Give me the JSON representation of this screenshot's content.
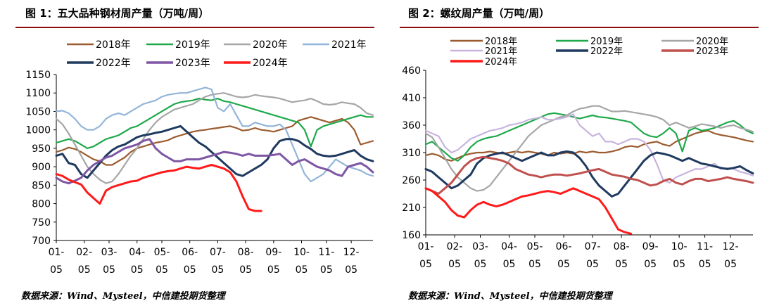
{
  "charts": [
    {
      "title": "图 1：五大品种钢材周产量（万吨/周）",
      "source": "数据来源：Wind、Mysteel，中信建投期货整理"
    },
    {
      "title": "图 2：螺纹周产量（万吨/周）",
      "source": "数据来源：Wind、Mysteel，中信建投期货整理"
    }
  ],
  "chart_data": [
    {
      "type": "line",
      "title": "图 1：五大品种钢材周产量（万吨/周）",
      "xlabel": "",
      "ylabel": "",
      "xlim": [
        1,
        52
      ],
      "ylim": [
        700,
        1150
      ],
      "yticks": [
        "1150",
        "1100",
        "1050",
        "1000",
        "950",
        "900",
        "850",
        "800",
        "750",
        "700"
      ],
      "xticks": [
        {
          "week": 1,
          "top": "01-",
          "bottom": "05"
        },
        {
          "week": 5.5,
          "top": "02-",
          "bottom": "05"
        },
        {
          "week": 9.5,
          "top": "03-",
          "bottom": "05"
        },
        {
          "week": 14,
          "top": "04-",
          "bottom": "05"
        },
        {
          "week": 18,
          "top": "05-",
          "bottom": "05"
        },
        {
          "week": 22.5,
          "top": "06-",
          "bottom": "05"
        },
        {
          "week": 27,
          "top": "07-",
          "bottom": "05"
        },
        {
          "week": 31.5,
          "top": "08-",
          "bottom": "05"
        },
        {
          "week": 36,
          "top": "09-",
          "bottom": "05"
        },
        {
          "week": 40.5,
          "top": "10-",
          "bottom": "05"
        },
        {
          "week": 44.5,
          "top": "11-",
          "bottom": "05"
        },
        {
          "week": 48.5,
          "top": "12-",
          "bottom": "05"
        }
      ],
      "grid": false,
      "legend_position": "top",
      "series": [
        {
          "name": "2018年",
          "color": "#9c5b2e",
          "values": [
            940,
            945,
            952,
            948,
            940,
            930,
            920,
            915,
            905,
            905,
            915,
            925,
            940,
            950,
            955,
            960,
            965,
            968,
            972,
            980,
            985,
            990,
            995,
            998,
            1000,
            1003,
            1005,
            1008,
            1010,
            1005,
            998,
            1000,
            1005,
            1000,
            998,
            995,
            1000,
            1005,
            1010,
            1025,
            1030,
            1035,
            1030,
            1025,
            1020,
            1025,
            1030,
            1020,
            1000,
            960,
            965,
            970
          ]
        },
        {
          "name": "2019年",
          "color": "#1fa84a",
          "values": [
            965,
            970,
            975,
            970,
            960,
            950,
            955,
            965,
            975,
            980,
            985,
            995,
            1005,
            1010,
            1020,
            1030,
            1040,
            1050,
            1060,
            1070,
            1075,
            1078,
            1080,
            1085,
            1082,
            1080,
            1085,
            1078,
            1075,
            1070,
            1065,
            1060,
            1055,
            1050,
            1045,
            1040,
            1035,
            1030,
            1025,
            1020,
            1000,
            955,
            1000,
            1010,
            1015,
            1020,
            1025,
            1030,
            1035,
            1040,
            1035,
            1035
          ]
        },
        {
          "name": "2020年",
          "color": "#a6a6a6",
          "values": [
            1030,
            1015,
            990,
            960,
            930,
            900,
            880,
            865,
            855,
            860,
            880,
            905,
            930,
            950,
            975,
            1000,
            1020,
            1035,
            1045,
            1055,
            1060,
            1065,
            1070,
            1080,
            1090,
            1095,
            1098,
            1100,
            1095,
            1090,
            1088,
            1090,
            1095,
            1092,
            1090,
            1088,
            1085,
            1080,
            1075,
            1078,
            1080,
            1085,
            1078,
            1070,
            1068,
            1070,
            1075,
            1072,
            1070,
            1060,
            1045,
            1040
          ]
        },
        {
          "name": "2021年",
          "color": "#92b5d9",
          "values": [
            1050,
            1052,
            1045,
            1030,
            1010,
            1000,
            1000,
            1010,
            1030,
            1040,
            1045,
            1040,
            1050,
            1060,
            1070,
            1075,
            1080,
            1090,
            1095,
            1098,
            1100,
            1100,
            1105,
            1110,
            1115,
            1110,
            1060,
            1050,
            1070,
            1040,
            1010,
            1010,
            1020,
            1015,
            1010,
            1010,
            1015,
            1000,
            960,
            920,
            880,
            860,
            870,
            880,
            900,
            920,
            910,
            900,
            895,
            890,
            880,
            875
          ]
        },
        {
          "name": "2022年",
          "color": "#1f3a5f",
          "values": [
            930,
            935,
            910,
            905,
            880,
            870,
            890,
            910,
            930,
            945,
            955,
            960,
            970,
            980,
            985,
            988,
            992,
            995,
            1000,
            1005,
            1010,
            995,
            980,
            965,
            955,
            940,
            925,
            910,
            895,
            880,
            875,
            885,
            895,
            905,
            920,
            950,
            970,
            975,
            975,
            970,
            958,
            948,
            935,
            930,
            928,
            930,
            935,
            940,
            945,
            930,
            920,
            915
          ]
        },
        {
          "name": "2023年",
          "color": "#7e57a4",
          "values": [
            870,
            860,
            855,
            862,
            870,
            890,
            905,
            915,
            925,
            930,
            940,
            950,
            955,
            960,
            970,
            975,
            950,
            935,
            925,
            915,
            915,
            920,
            920,
            920,
            925,
            930,
            935,
            940,
            938,
            935,
            930,
            935,
            930,
            930,
            930,
            932,
            935,
            920,
            905,
            915,
            920,
            910,
            900,
            895,
            890,
            880,
            875,
            900,
            905,
            910,
            900,
            885
          ]
        },
        {
          "name": "2024年",
          "color": "#ff1a1a",
          "values": [
            880,
            875,
            865,
            858,
            852,
            830,
            815,
            800,
            835,
            845,
            850,
            855,
            860,
            862,
            870,
            875,
            880,
            885,
            888,
            890,
            895,
            900,
            897,
            895,
            900,
            905,
            900,
            895,
            885,
            860,
            820,
            785,
            780,
            780
          ]
        }
      ]
    },
    {
      "type": "line",
      "title": "图 2：螺纹周产量（万吨/周）",
      "xlabel": "",
      "ylabel": "",
      "xlim": [
        1,
        52
      ],
      "ylim": [
        160,
        460
      ],
      "yticks": [
        "460",
        "410",
        "360",
        "310",
        "260",
        "210",
        "160"
      ],
      "xticks": [
        {
          "week": 1,
          "top": "01-",
          "bottom": "05"
        },
        {
          "week": 5.5,
          "top": "02-",
          "bottom": "05"
        },
        {
          "week": 9.5,
          "top": "03-",
          "bottom": "05"
        },
        {
          "week": 14,
          "top": "04-",
          "bottom": "05"
        },
        {
          "week": 18,
          "top": "05-",
          "bottom": "05"
        },
        {
          "week": 22.5,
          "top": "06-",
          "bottom": "05"
        },
        {
          "week": 27,
          "top": "07-",
          "bottom": "05"
        },
        {
          "week": 31.5,
          "top": "08-",
          "bottom": "05"
        },
        {
          "week": 36,
          "top": "09-",
          "bottom": "05"
        },
        {
          "week": 40.5,
          "top": "10-",
          "bottom": "05"
        },
        {
          "week": 44.5,
          "top": "11-",
          "bottom": "05"
        },
        {
          "week": 48.5,
          "top": "12-",
          "bottom": "05"
        }
      ],
      "grid": false,
      "legend_position": "top",
      "series": [
        {
          "name": "2018年",
          "color": "#9c5b2e",
          "values": [
            305,
            308,
            305,
            298,
            295,
            300,
            305,
            308,
            310,
            310,
            312,
            310,
            308,
            310,
            312,
            310,
            312,
            310,
            308,
            305,
            310,
            308,
            310,
            308,
            312,
            310,
            312,
            310,
            310,
            312,
            315,
            320,
            322,
            320,
            325,
            328,
            330,
            325,
            322,
            330,
            335,
            340,
            345,
            348,
            350,
            345,
            342,
            340,
            338,
            335,
            332,
            330
          ]
        },
        {
          "name": "2019年",
          "color": "#1fa84a",
          "values": [
            325,
            330,
            320,
            310,
            300,
            295,
            305,
            320,
            330,
            335,
            338,
            340,
            345,
            350,
            355,
            360,
            365,
            370,
            375,
            380,
            382,
            380,
            378,
            375,
            372,
            375,
            378,
            375,
            374,
            372,
            370,
            368,
            365,
            355,
            345,
            340,
            338,
            345,
            355,
            345,
            312,
            350,
            355,
            350,
            352,
            355,
            360,
            365,
            368,
            360,
            350,
            345
          ]
        },
        {
          "name": "2020年",
          "color": "#a6a6a6",
          "values": [
            345,
            338,
            320,
            300,
            280,
            265,
            255,
            245,
            240,
            242,
            250,
            265,
            280,
            295,
            310,
            325,
            340,
            350,
            360,
            365,
            370,
            375,
            378,
            385,
            390,
            392,
            395,
            395,
            390,
            385,
            385,
            386,
            384,
            382,
            380,
            378,
            375,
            370,
            360,
            365,
            360,
            355,
            358,
            362,
            360,
            358,
            355,
            358,
            360,
            355,
            352,
            348
          ]
        },
        {
          "name": "2021年",
          "color": "#c8b4dd",
          "values": [
            350,
            345,
            340,
            320,
            310,
            315,
            325,
            335,
            340,
            345,
            350,
            352,
            355,
            360,
            362,
            365,
            370,
            372,
            375,
            370,
            370,
            372,
            375,
            380,
            360,
            350,
            340,
            345,
            330,
            330,
            325,
            330,
            335,
            335,
            330,
            315,
            290,
            260,
            255,
            265,
            270,
            275,
            280,
            280,
            285,
            290,
            280,
            282,
            280,
            275,
            272,
            268
          ]
        },
        {
          "name": "2022年",
          "color": "#1f3a5f",
          "values": [
            280,
            275,
            265,
            255,
            245,
            250,
            260,
            270,
            290,
            300,
            305,
            308,
            310,
            305,
            300,
            295,
            300,
            305,
            310,
            305,
            305,
            310,
            312,
            310,
            300,
            285,
            265,
            250,
            240,
            230,
            235,
            250,
            265,
            280,
            295,
            305,
            310,
            308,
            305,
            300,
            295,
            300,
            295,
            290,
            288,
            285,
            282,
            280,
            282,
            285,
            278,
            272
          ]
        },
        {
          "name": "2023年",
          "color": "#c0504d",
          "values": [
            245,
            240,
            235,
            245,
            255,
            270,
            285,
            295,
            300,
            302,
            300,
            298,
            295,
            290,
            280,
            275,
            270,
            268,
            265,
            268,
            270,
            270,
            268,
            270,
            272,
            275,
            278,
            280,
            275,
            270,
            268,
            266,
            262,
            260,
            255,
            250,
            252,
            258,
            262,
            255,
            252,
            258,
            262,
            262,
            258,
            260,
            262,
            265,
            262,
            260,
            258,
            255
          ]
        },
        {
          "name": "2024年",
          "color": "#ff1a1a",
          "values": [
            245,
            240,
            230,
            220,
            205,
            195,
            192,
            205,
            215,
            220,
            215,
            212,
            215,
            220,
            225,
            230,
            232,
            235,
            238,
            240,
            238,
            235,
            240,
            245,
            240,
            235,
            230,
            225,
            210,
            190,
            170,
            165,
            162
          ]
        }
      ]
    }
  ]
}
